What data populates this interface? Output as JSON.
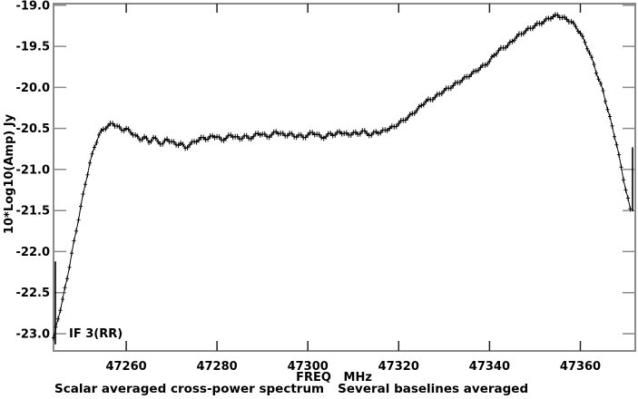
{
  "window": {
    "background": "#ffffff"
  },
  "labels": {
    "y_axis_title": "10*Log10(Amp) Jy",
    "x_axis_title": "FREQ   MHz",
    "if_label": "IF 3(RR)",
    "caption_primary": "Scalar averaged cross-power spectrum",
    "caption_secondary": "Several baselines averaged"
  },
  "colors": {
    "background": "#ffffff",
    "frame": "#8a8a8a",
    "tick_x": "#222222",
    "tick_y": "#8a8a8a",
    "data": "#000000",
    "text": "#000000"
  },
  "chart_data": {
    "type": "line",
    "title": "",
    "xlabel": "FREQ   MHz",
    "ylabel": "10*Log10(Amp) Jy",
    "annotation": "IF 3(RR)",
    "grid": false,
    "legend": "none",
    "marker": "plus",
    "xlim": [
      47244.0,
      47372.1
    ],
    "ylim": [
      -23.21,
      -18.98
    ],
    "x_ticks": [
      47260,
      47280,
      47300,
      47320,
      47340,
      47360
    ],
    "y_ticks": [
      -19.0,
      -19.5,
      -20.0,
      -20.5,
      -21.0,
      -21.5,
      -22.0,
      -22.5,
      -23.0
    ],
    "series": [
      {
        "name": "scalar averaged cross-power spectrum",
        "f_start": 47244,
        "f_step": 1.0,
        "values": [
          -23.05,
          -22.82,
          -22.58,
          -22.33,
          -22.02,
          -21.75,
          -21.45,
          -21.18,
          -20.92,
          -20.73,
          -20.58,
          -20.51,
          -20.47,
          -20.44,
          -20.47,
          -20.52,
          -20.5,
          -20.55,
          -20.58,
          -20.64,
          -20.6,
          -20.67,
          -20.61,
          -20.66,
          -20.69,
          -20.63,
          -20.66,
          -20.7,
          -20.68,
          -20.74,
          -20.7,
          -20.66,
          -20.64,
          -20.61,
          -20.63,
          -20.59,
          -20.6,
          -20.64,
          -20.62,
          -20.58,
          -20.6,
          -20.63,
          -20.59,
          -20.62,
          -20.6,
          -20.56,
          -20.57,
          -20.6,
          -20.58,
          -20.54,
          -20.56,
          -20.59,
          -20.56,
          -20.6,
          -20.58,
          -20.61,
          -20.58,
          -20.55,
          -20.57,
          -20.61,
          -20.6,
          -20.56,
          -20.58,
          -20.54,
          -20.56,
          -20.58,
          -20.55,
          -20.57,
          -20.53,
          -20.56,
          -20.58,
          -20.54,
          -20.55,
          -20.52,
          -20.5,
          -20.48,
          -20.44,
          -20.4,
          -20.37,
          -20.32,
          -20.28,
          -20.22,
          -20.17,
          -20.15,
          -20.12,
          -20.08,
          -20.04,
          -20.01,
          -19.98,
          -19.94,
          -19.91,
          -19.87,
          -19.84,
          -19.8,
          -19.76,
          -19.73,
          -19.68,
          -19.61,
          -19.55,
          -19.52,
          -19.49,
          -19.44,
          -19.38,
          -19.35,
          -19.31,
          -19.28,
          -19.25,
          -19.22,
          -19.2,
          -19.16,
          -19.14,
          -19.12,
          -19.15,
          -19.17,
          -19.2,
          -19.26,
          -19.34,
          -19.45,
          -19.58,
          -19.72,
          -19.9,
          -20.04,
          -20.27,
          -20.47,
          -20.7,
          -20.97,
          -21.25,
          -21.48
        ]
      }
    ],
    "spikes": [
      {
        "f": 47244.4,
        "v_from": -22.12,
        "v_to": -23.13
      },
      {
        "f": 47371.5,
        "v_from": -20.73,
        "v_to": -21.51
      }
    ]
  }
}
